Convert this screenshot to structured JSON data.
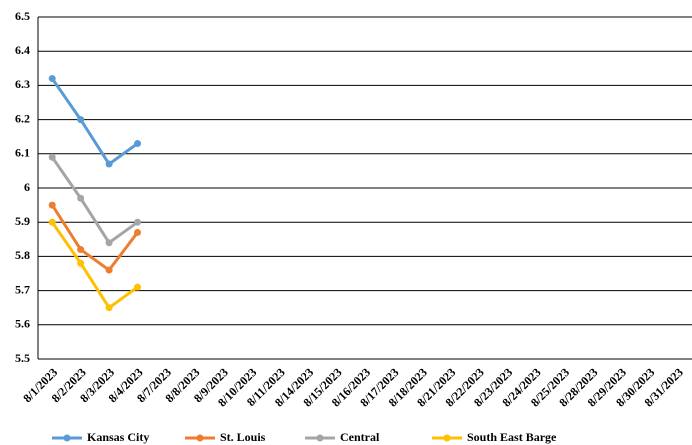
{
  "chart_data": {
    "type": "line",
    "categories": [
      "8/1/2023",
      "8/2/2023",
      "8/3/2023",
      "8/4/2023",
      "8/7/2023",
      "8/8/2023",
      "8/9/2023",
      "8/10/2023",
      "8/11/2023",
      "8/14/2023",
      "8/15/2023",
      "8/16/2023",
      "8/17/2023",
      "8/18/2023",
      "8/21/2023",
      "8/22/2023",
      "8/23/2023",
      "8/24/2023",
      "8/25/2023",
      "8/28/2023",
      "8/29/2023",
      "8/30/2023",
      "8/31/2023"
    ],
    "series": [
      {
        "name": "Kansas City",
        "color": "#5b9bd5",
        "values": [
          6.32,
          6.2,
          6.07,
          6.13,
          null,
          null,
          null,
          null,
          null,
          null,
          null,
          null,
          null,
          null,
          null,
          null,
          null,
          null,
          null,
          null,
          null,
          null,
          null
        ]
      },
      {
        "name": "St. Louis",
        "color": "#ed7d31",
        "values": [
          5.95,
          5.82,
          5.76,
          5.87,
          null,
          null,
          null,
          null,
          null,
          null,
          null,
          null,
          null,
          null,
          null,
          null,
          null,
          null,
          null,
          null,
          null,
          null,
          null
        ]
      },
      {
        "name": "Central",
        "color": "#a5a5a5",
        "values": [
          6.09,
          5.97,
          5.84,
          5.9,
          null,
          null,
          null,
          null,
          null,
          null,
          null,
          null,
          null,
          null,
          null,
          null,
          null,
          null,
          null,
          null,
          null,
          null,
          null
        ]
      },
      {
        "name": "South East Barge",
        "color": "#ffc000",
        "values": [
          5.9,
          5.78,
          5.65,
          5.71,
          null,
          null,
          null,
          null,
          null,
          null,
          null,
          null,
          null,
          null,
          null,
          null,
          null,
          null,
          null,
          null,
          null,
          null,
          null
        ]
      }
    ],
    "ylim": [
      5.5,
      6.5
    ],
    "yticks": [
      5.5,
      5.6,
      5.7,
      5.8,
      5.9,
      6,
      6.1,
      6.2,
      6.3,
      6.4,
      6.5
    ],
    "grid": true,
    "legend": "bottom"
  }
}
